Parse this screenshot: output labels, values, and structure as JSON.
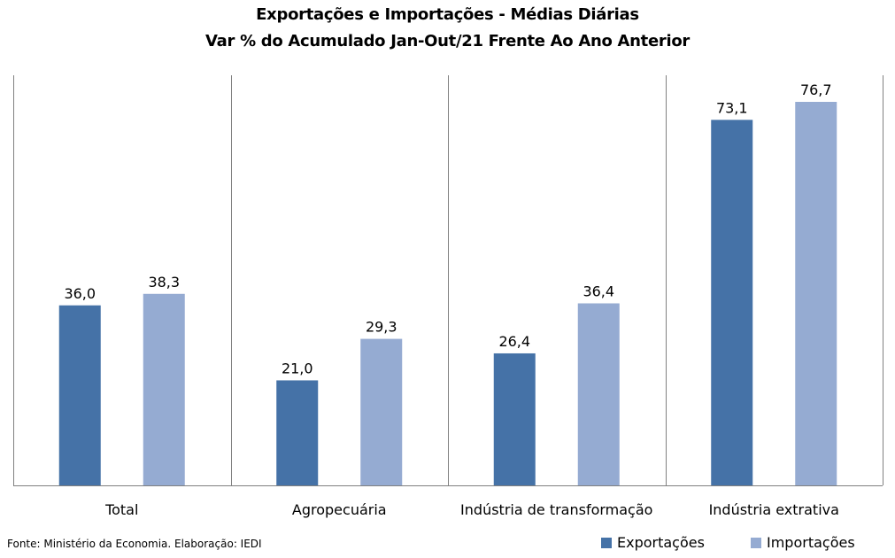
{
  "title": "Exportações e Importações - Médias Diárias",
  "subtitle": "Var % do Acumulado Jan-Out/21 Frente Ao Ano Anterior",
  "source": "Fonte: Ministério da Economia. Elaboração: IEDI",
  "chart_data": {
    "type": "bar",
    "categories": [
      "Total",
      "Agropecuária",
      "Indústria de transformação",
      "Indústria extrativa"
    ],
    "series": [
      {
        "name": "Exportações",
        "values": [
          36.0,
          21.0,
          26.4,
          73.1
        ],
        "labels": [
          "36,0",
          "21,0",
          "26,4",
          "73,1"
        ],
        "color": "#4572a7"
      },
      {
        "name": "Importações",
        "values": [
          38.3,
          29.3,
          36.4,
          76.7
        ],
        "labels": [
          "38,3",
          "29,3",
          "36,4",
          "76,7"
        ],
        "color": "#95abd2"
      }
    ],
    "ylim": [
      0,
      76.7
    ],
    "grid": false,
    "legend_position": "bottom-right"
  }
}
